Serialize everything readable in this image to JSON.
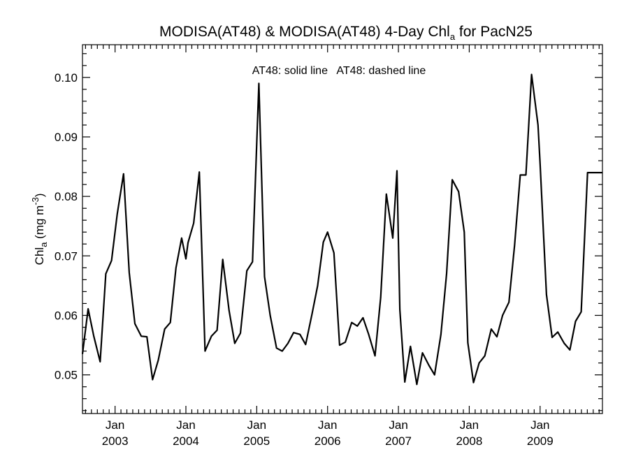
{
  "chart_data": {
    "type": "line",
    "title": {
      "prefix": "MODISA(AT48) & MODISA(AT48) 4-Day Chl",
      "subscript": "a",
      "suffix": " for PacN25"
    },
    "ylabel": {
      "prefix": "Chl",
      "subscript": "a",
      "middle": " (mg m",
      "superscript": "-3",
      "suffix": ")"
    },
    "annotation": "AT48: solid line   AT48: dashed line",
    "xlim": [
      2002.54,
      2009.88
    ],
    "ylim": [
      0.0435,
      0.1055
    ],
    "yticks": [
      {
        "value": 0.05,
        "label": "0.05"
      },
      {
        "value": 0.06,
        "label": "0.06"
      },
      {
        "value": 0.07,
        "label": "0.07"
      },
      {
        "value": 0.08,
        "label": "0.08"
      },
      {
        "value": 0.09,
        "label": "0.09"
      },
      {
        "value": 0.1,
        "label": "0.10"
      }
    ],
    "xticks": [
      {
        "value": 2003.0,
        "month": "Jan",
        "year": "2003"
      },
      {
        "value": 2004.0,
        "month": "Jan",
        "year": "2004"
      },
      {
        "value": 2005.0,
        "month": "Jan",
        "year": "2005"
      },
      {
        "value": 2006.0,
        "month": "Jan",
        "year": "2006"
      },
      {
        "value": 2007.0,
        "month": "Jan",
        "year": "2007"
      },
      {
        "value": 2008.0,
        "month": "Jan",
        "year": "2008"
      },
      {
        "value": 2009.0,
        "month": "Jan",
        "year": "2009"
      }
    ],
    "series": [
      {
        "style": "solid",
        "color": "#000000",
        "x": [
          2002.54,
          2002.62,
          2002.7,
          2002.79,
          2002.87,
          2002.95,
          2003.03,
          2003.12,
          2003.2,
          2003.28,
          2003.37,
          2003.45,
          2003.53,
          2003.61,
          2003.7,
          2003.78,
          2003.86,
          2003.94,
          2004.0,
          2004.03,
          2004.11,
          2004.19,
          2004.27,
          2004.36,
          2004.44,
          2004.52,
          2004.61,
          2004.69,
          2004.77,
          2004.86,
          2004.94,
          2005.03,
          2005.11,
          2005.19,
          2005.28,
          2005.36,
          2005.44,
          2005.52,
          2005.61,
          2005.69,
          2005.78,
          2005.86,
          2005.94,
          2006.0,
          2006.09,
          2006.17,
          2006.25,
          2006.34,
          2006.42,
          2006.5,
          2006.58,
          2006.67,
          2006.75,
          2006.83,
          2006.92,
          2006.98,
          2007.02,
          2007.09,
          2007.17,
          2007.26,
          2007.34,
          2007.43,
          2007.51,
          2007.6,
          2007.68,
          2007.76,
          2007.85,
          2007.93,
          2007.98,
          2008.06,
          2008.14,
          2008.22,
          2008.31,
          2008.39,
          2008.47,
          2008.56,
          2008.64,
          2008.72,
          2008.8,
          2008.88,
          2008.97,
          2009.0,
          2009.09,
          2009.17,
          2009.25,
          2009.34,
          2009.42,
          2009.5,
          2009.58,
          2009.67,
          2009.75,
          2009.84,
          2009.88
        ],
        "y": [
          0.0535,
          0.0611,
          0.0565,
          0.0522,
          0.067,
          0.0692,
          0.077,
          0.0838,
          0.0672,
          0.0586,
          0.0565,
          0.0564,
          0.0492,
          0.0525,
          0.0577,
          0.0588,
          0.068,
          0.073,
          0.0695,
          0.0722,
          0.0755,
          0.0841,
          0.054,
          0.0565,
          0.0575,
          0.0694,
          0.0608,
          0.0553,
          0.057,
          0.0675,
          0.069,
          0.099,
          0.0665,
          0.06,
          0.0545,
          0.054,
          0.0553,
          0.0571,
          0.0568,
          0.0551,
          0.0602,
          0.065,
          0.0723,
          0.074,
          0.0705,
          0.055,
          0.0555,
          0.0588,
          0.0582,
          0.0596,
          0.0568,
          0.0532,
          0.063,
          0.0804,
          0.073,
          0.0843,
          0.061,
          0.0488,
          0.0548,
          0.0484,
          0.0537,
          0.0516,
          0.05,
          0.0568,
          0.067,
          0.0828,
          0.0808,
          0.074,
          0.0554,
          0.0487,
          0.052,
          0.0532,
          0.0577,
          0.0564,
          0.06,
          0.0622,
          0.0718,
          0.0836,
          0.0836,
          0.1005,
          0.092,
          0.0855,
          0.0635,
          0.0563,
          0.0572,
          0.0553,
          0.0542,
          0.059,
          0.0606,
          0.084,
          0.084,
          0.084,
          0.084
        ]
      }
    ]
  }
}
